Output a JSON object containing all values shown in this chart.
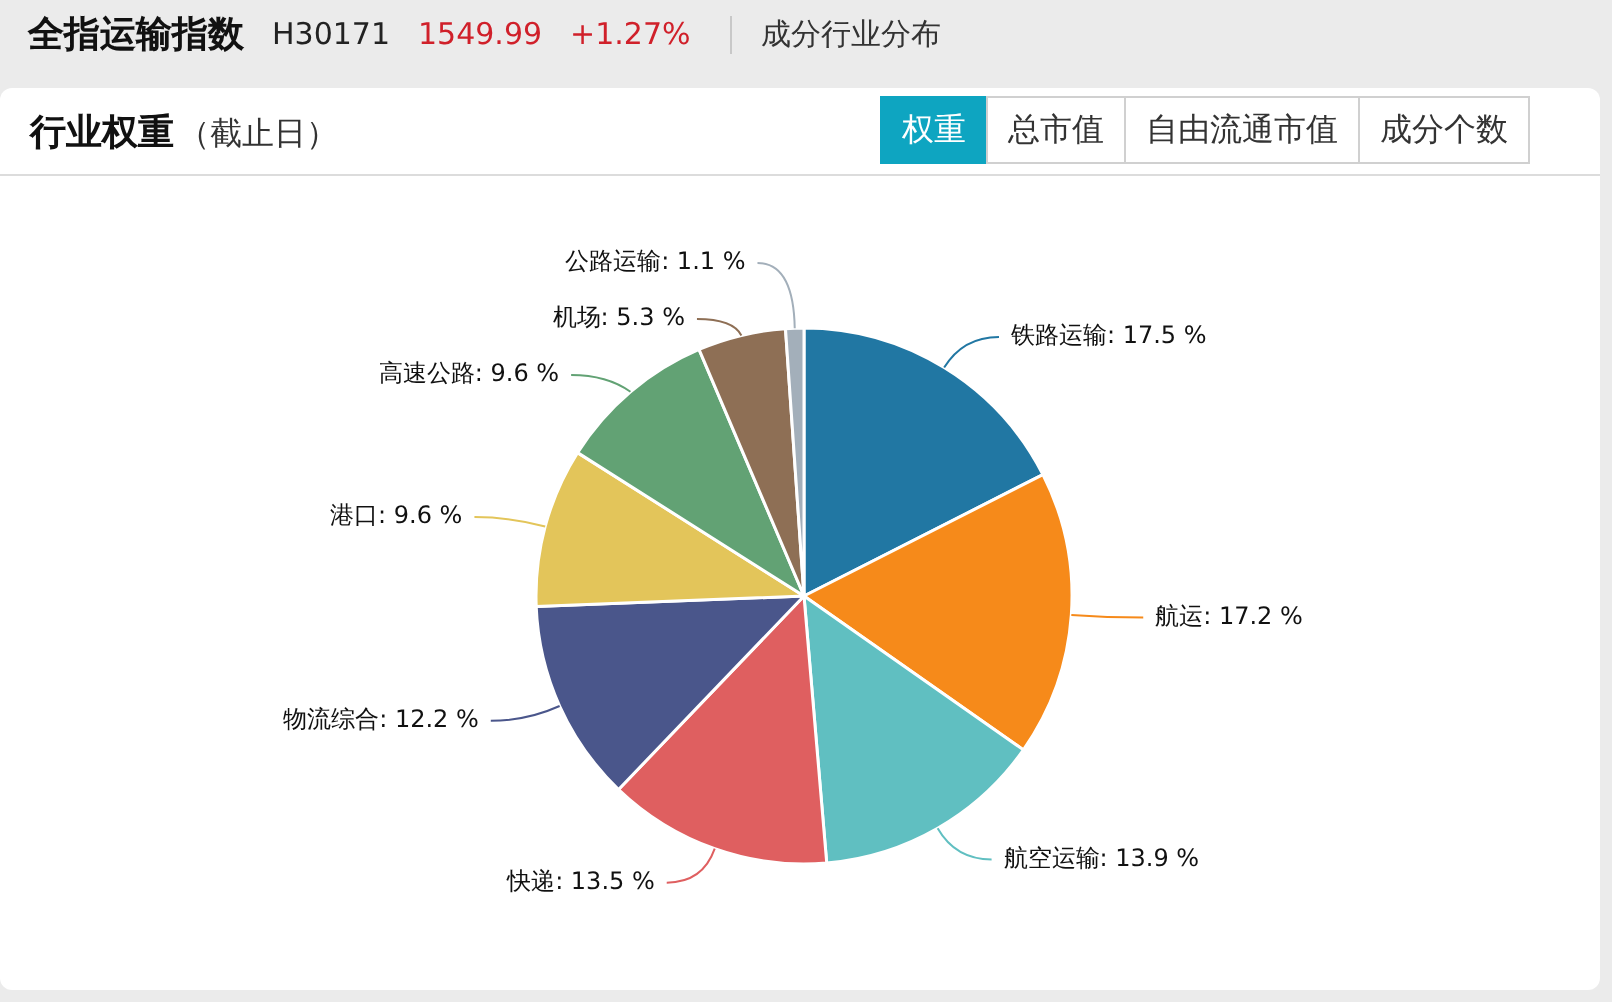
{
  "chart_data": {
    "type": "pie",
    "title": "行业权重",
    "subtitle": "（截止日）",
    "annotations": [
      "全指运输指数",
      "H30171",
      "1549.99",
      "+1.27%",
      "成分行业分布",
      "权重",
      "总市值",
      "自由流通市值",
      "成分个数"
    ],
    "categories": [
      "铁路运输",
      "航运",
      "航空运输",
      "快递",
      "物流综合",
      "港口",
      "高速公路",
      "机场",
      "公路运输"
    ],
    "values": [
      17.5,
      17.2,
      13.9,
      13.5,
      12.2,
      9.6,
      9.6,
      5.3,
      1.1
    ],
    "value_labels": [
      "17.5 %",
      "17.2 %",
      "13.9 %",
      "13.5 %",
      "12.2 %",
      "9.6 %",
      "9.6 %",
      "5.3 %",
      "1.1 %"
    ],
    "colors": [
      "#2177a3",
      "#f68a1a",
      "#60bfc1",
      "#df5f60",
      "#4a568b",
      "#e3c55a",
      "#62a274",
      "#8e6f55",
      "#a3afba"
    ]
  }
}
